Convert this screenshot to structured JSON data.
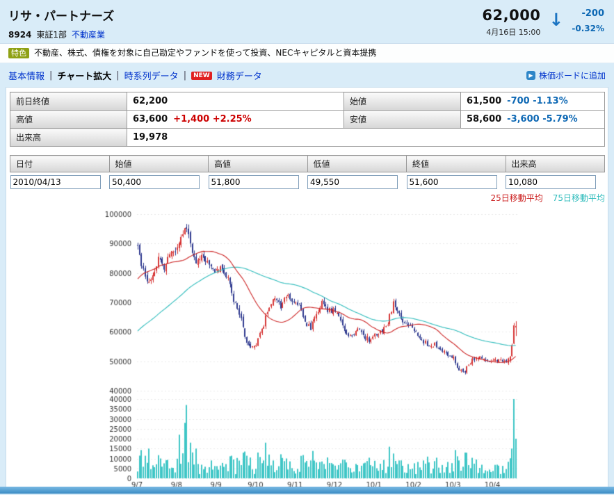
{
  "header": {
    "title": "リサ・パートナーズ",
    "code": "8924",
    "market": "東証1部",
    "industry": "不動産業",
    "price": "62,000",
    "datetime": "4月16日 15:00",
    "arrow": "↓",
    "change": "-200",
    "change_pct": "-0.32%"
  },
  "feature": {
    "badge": "特色",
    "text": "不動産、株式、債権を対象に自己勘定やファンドを使って投資、NECキャピタルと資本提携"
  },
  "nav": {
    "separator": "|",
    "tabs": [
      "基本情報",
      "チャート拡大",
      "時系列データ",
      "財務データ"
    ],
    "active_tab": "チャート拡大",
    "new_badge": "NEW",
    "add_board": "株価ボードに追加"
  },
  "summary": {
    "prev_close_label": "前日終値",
    "prev_close": "62,200",
    "open_label": "始値",
    "open": "61,500",
    "open_change": "-700 -1.13%",
    "high_label": "高値",
    "high": "63,600",
    "high_change": "+1,400 +2.25%",
    "low_label": "安値",
    "low": "58,600",
    "low_change": "-3,600 -5.79%",
    "volume_label": "出来高",
    "volume": "19,978"
  },
  "quote_form": {
    "headers": [
      "日付",
      "始値",
      "高値",
      "低値",
      "終値",
      "出来高"
    ],
    "values": [
      "2010/04/13",
      "50,400",
      "51,800",
      "49,550",
      "51,600",
      "10,080"
    ]
  },
  "chart_data": {
    "type": "candlestick",
    "panels": [
      "price",
      "volume"
    ],
    "x_tick_labels": [
      "9/7",
      "9/8",
      "9/9",
      "9/10",
      "9/11",
      "9/12",
      "10/1",
      "10/2",
      "10/3",
      "10/4"
    ],
    "price_ticks": [
      100000,
      90000,
      80000,
      70000,
      60000,
      50000,
      40000
    ],
    "volume_ticks": [
      40000,
      35000,
      30000,
      25000,
      20000,
      15000,
      10000,
      5000,
      0
    ],
    "price_range": [
      40000,
      100000
    ],
    "volume_range": [
      0,
      40000
    ],
    "x_domain_months": 9.65,
    "days_per_month": 21,
    "legend": [
      {
        "label": "25日移動平均",
        "color": "#cc2222"
      },
      {
        "label": "75日移動平均",
        "color": "#2fbcbc"
      }
    ],
    "colors": {
      "up": "#d63434",
      "down": "#2f3a8f",
      "ma25": "#cc2222",
      "ma75": "#2fbcbc",
      "volume": "#3fc6c6",
      "grid": "#e9e9e9",
      "axis_text": "#333333"
    },
    "trend_anchors": [
      [
        0.0,
        90000
      ],
      [
        0.1,
        84000
      ],
      [
        0.25,
        76500
      ],
      [
        0.4,
        80000
      ],
      [
        0.55,
        84500
      ],
      [
        0.7,
        82000
      ],
      [
        0.85,
        88000
      ],
      [
        1.0,
        87000
      ],
      [
        1.1,
        91000
      ],
      [
        1.25,
        96500
      ],
      [
        1.35,
        89000
      ],
      [
        1.5,
        82500
      ],
      [
        1.65,
        86000
      ],
      [
        1.8,
        83500
      ],
      [
        1.95,
        80500
      ],
      [
        2.1,
        81500
      ],
      [
        2.3,
        78500
      ],
      [
        2.45,
        71000
      ],
      [
        2.6,
        66000
      ],
      [
        2.75,
        57500
      ],
      [
        2.9,
        54000
      ],
      [
        3.05,
        56500
      ],
      [
        3.2,
        62000
      ],
      [
        3.35,
        69000
      ],
      [
        3.5,
        72000
      ],
      [
        3.65,
        68000
      ],
      [
        3.8,
        73000
      ],
      [
        3.95,
        70500
      ],
      [
        4.1,
        69500
      ],
      [
        4.25,
        63500
      ],
      [
        4.4,
        61000
      ],
      [
        4.55,
        66000
      ],
      [
        4.7,
        70000
      ],
      [
        4.85,
        67000
      ],
      [
        5.0,
        68000
      ],
      [
        5.15,
        63500
      ],
      [
        5.3,
        60000
      ],
      [
        5.45,
        58000
      ],
      [
        5.6,
        61000
      ],
      [
        5.75,
        58500
      ],
      [
        5.9,
        57000
      ],
      [
        6.05,
        59000
      ],
      [
        6.2,
        60500
      ],
      [
        6.35,
        63000
      ],
      [
        6.5,
        70000
      ],
      [
        6.65,
        65500
      ],
      [
        6.8,
        62500
      ],
      [
        6.95,
        61500
      ],
      [
        7.1,
        59500
      ],
      [
        7.25,
        57000
      ],
      [
        7.4,
        55000
      ],
      [
        7.55,
        56000
      ],
      [
        7.7,
        54000
      ],
      [
        7.85,
        52500
      ],
      [
        8.0,
        51500
      ],
      [
        8.15,
        47500
      ],
      [
        8.3,
        46500
      ],
      [
        8.45,
        50000
      ],
      [
        8.6,
        51500
      ],
      [
        8.75,
        50500
      ],
      [
        8.9,
        50000
      ],
      [
        9.05,
        50300
      ],
      [
        9.2,
        50000
      ],
      [
        9.4,
        50400
      ]
    ],
    "pre_anchors": [
      [
        -3.6,
        40000
      ],
      [
        -3.0,
        43000
      ],
      [
        -2.4,
        50000
      ],
      [
        -1.8,
        57000
      ],
      [
        -1.2,
        66000
      ],
      [
        -0.6,
        76000
      ],
      [
        -0.2,
        85000
      ]
    ],
    "volume_spikes": [
      [
        0.3,
        15000
      ],
      [
        0.6,
        10000
      ],
      [
        1.05,
        22000
      ],
      [
        1.2,
        28000
      ],
      [
        1.27,
        37000
      ],
      [
        1.33,
        18000
      ],
      [
        1.5,
        15000
      ],
      [
        1.9,
        9000
      ],
      [
        2.45,
        9500
      ],
      [
        2.75,
        13500
      ],
      [
        2.9,
        10500
      ],
      [
        3.2,
        9000
      ],
      [
        3.35,
        12000
      ],
      [
        3.8,
        10000
      ],
      [
        4.4,
        9000
      ],
      [
        4.7,
        8500
      ],
      [
        5.3,
        8000
      ],
      [
        6.5,
        12500
      ],
      [
        6.62,
        9000
      ],
      [
        7.4,
        8000
      ],
      [
        8.15,
        9000
      ],
      [
        8.3,
        13000
      ],
      [
        8.6,
        9500
      ]
    ],
    "final_days": [
      [
        50400,
        51800,
        49550,
        51600,
        10080
      ],
      [
        51800,
        56000,
        51500,
        55500,
        15000
      ],
      [
        56000,
        63000,
        55800,
        62200,
        40000
      ],
      [
        61500,
        63600,
        58600,
        62000,
        19978
      ]
    ]
  }
}
